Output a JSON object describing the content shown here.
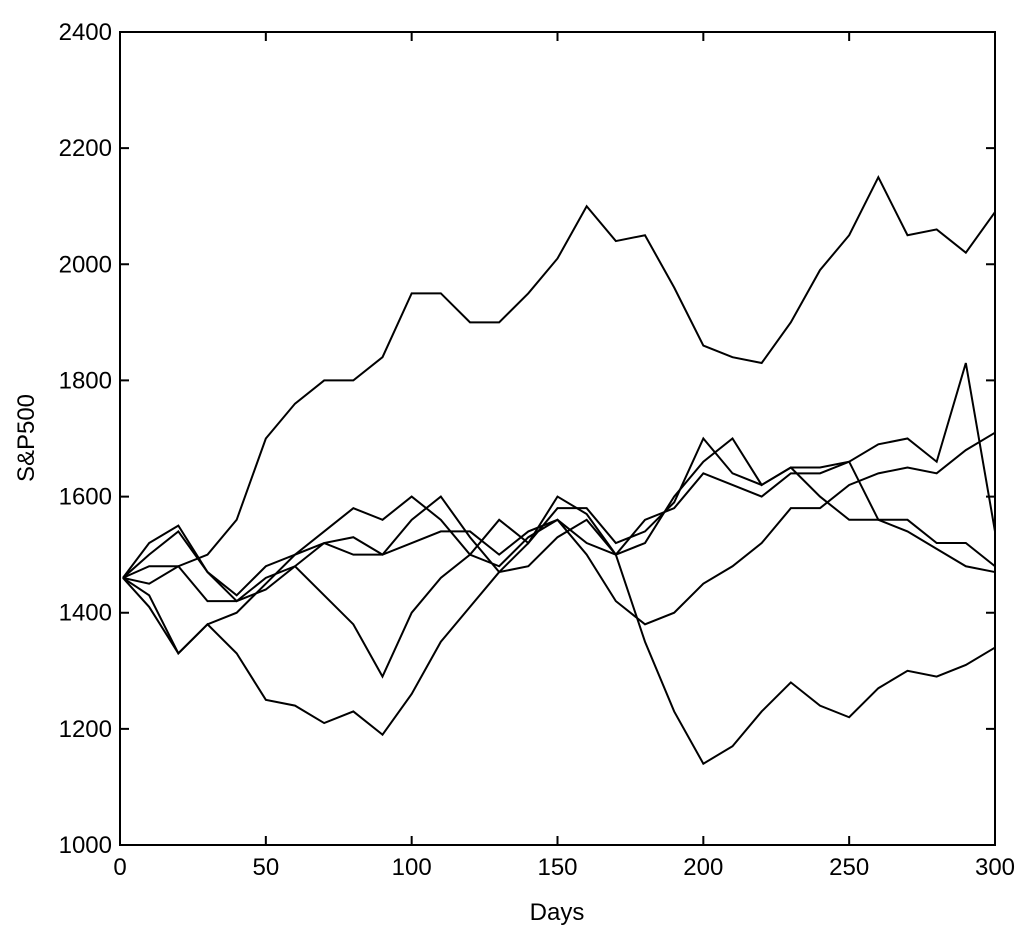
{
  "chart_data": {
    "type": "line",
    "x_label": "Days",
    "y_label": "S&P500",
    "x": [
      1,
      10,
      20,
      30,
      40,
      50,
      60,
      70,
      80,
      90,
      100,
      110,
      120,
      130,
      140,
      150,
      160,
      170,
      180,
      190,
      200,
      210,
      220,
      230,
      240,
      250,
      260,
      270,
      280,
      290,
      300
    ],
    "series": [
      {
        "color": "#000000",
        "values": [
          1460,
          1450,
          1480,
          1500,
          1560,
          1700,
          1760,
          1800,
          1800,
          1840,
          1950,
          1950,
          1900,
          1900,
          1950,
          2010,
          2100,
          2040,
          2050,
          1960,
          1860,
          1840,
          1830,
          1900,
          1990,
          2050,
          2150,
          2050,
          2060,
          2020,
          2090
        ]
      },
      {
        "color": "#000000",
        "values": [
          1460,
          1410,
          1330,
          1380,
          1330,
          1250,
          1240,
          1210,
          1230,
          1190,
          1260,
          1350,
          1410,
          1470,
          1480,
          1530,
          1560,
          1500,
          1350,
          1230,
          1140,
          1170,
          1230,
          1280,
          1240,
          1220,
          1270,
          1300,
          1290,
          1310,
          1340
        ]
      },
      {
        "color": "#000000",
        "values": [
          1460,
          1520,
          1550,
          1470,
          1420,
          1460,
          1480,
          1430,
          1380,
          1290,
          1400,
          1460,
          1500,
          1560,
          1520,
          1600,
          1570,
          1500,
          1520,
          1600,
          1660,
          1700,
          1620,
          1650,
          1650,
          1660,
          1690,
          1700,
          1660,
          1830,
          1540
        ]
      },
      {
        "color": "#000000",
        "values": [
          1460,
          1500,
          1540,
          1470,
          1430,
          1480,
          1500,
          1540,
          1580,
          1560,
          1600,
          1560,
          1500,
          1480,
          1530,
          1560,
          1500,
          1420,
          1380,
          1400,
          1450,
          1480,
          1520,
          1580,
          1580,
          1620,
          1640,
          1650,
          1640,
          1680,
          1710
        ]
      },
      {
        "color": "#000000",
        "values": [
          1460,
          1430,
          1330,
          1380,
          1400,
          1450,
          1500,
          1520,
          1500,
          1500,
          1560,
          1600,
          1530,
          1470,
          1520,
          1580,
          1580,
          1520,
          1540,
          1590,
          1700,
          1640,
          1620,
          1650,
          1600,
          1560,
          1560,
          1540,
          1510,
          1480,
          1470
        ]
      },
      {
        "color": "#000000",
        "values": [
          1460,
          1480,
          1480,
          1420,
          1420,
          1440,
          1480,
          1520,
          1530,
          1500,
          1520,
          1540,
          1540,
          1500,
          1540,
          1560,
          1520,
          1500,
          1560,
          1580,
          1640,
          1620,
          1600,
          1640,
          1640,
          1660,
          1560,
          1560,
          1520,
          1520,
          1480
        ]
      }
    ],
    "xlim": [
      0,
      300
    ],
    "xticks": [
      0,
      50,
      100,
      150,
      200,
      250,
      300
    ],
    "ylim": [
      1000,
      2400
    ],
    "yticks": [
      1000,
      1200,
      1400,
      1600,
      1800,
      2000,
      2200,
      2400
    ]
  }
}
